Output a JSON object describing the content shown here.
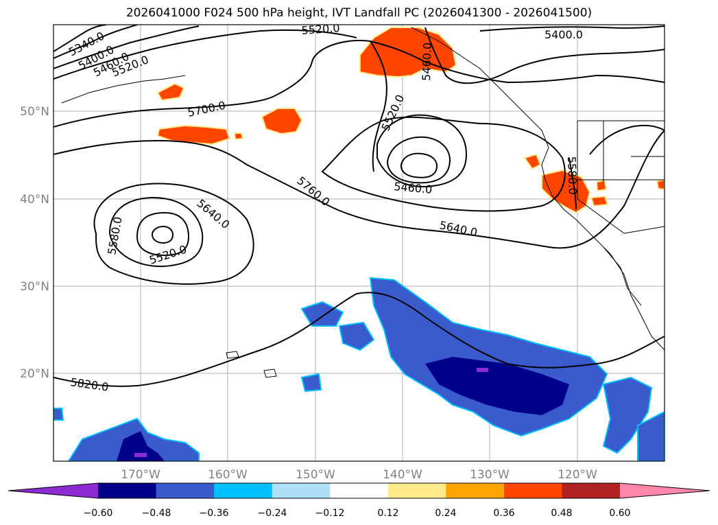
{
  "title": "2026041000 F024 500 hPa height, IVT Landfall PC (2026041300 - 2026041500)",
  "lat_labels": [
    "50°N",
    "40°N",
    "30°N",
    "20°N"
  ],
  "lon_labels": [
    "170°W",
    "160°W",
    "150°W",
    "140°W",
    "130°W",
    "120°W"
  ],
  "contour_labels": [
    "5340.0",
    "5400.0",
    "5460.0",
    "5520.0",
    "5520.0",
    "5400.0",
    "5460.0",
    "5520.0",
    "5700.0",
    "5760.0",
    "5640.0",
    "5580.0",
    "5520.0",
    "5460.0",
    "5640.0",
    "5580.0",
    "5820.0"
  ],
  "colorbar": {
    "ticks": [
      "−0.60",
      "−0.48",
      "−0.36",
      "−0.24",
      "−0.12",
      "0.12",
      "0.24",
      "0.36",
      "0.48",
      "0.60"
    ],
    "colors": [
      "#8B2BD0",
      "#00008B",
      "#3A5BCB",
      "#00BFFF",
      "#B0E0F8",
      "#FFFFFF",
      "#FFEA8C",
      "#FFA500",
      "#FF4500",
      "#B22222",
      "#FF88AA"
    ]
  },
  "shading_colors": {
    "neg_deep": "#00008B",
    "neg_mid": "#3A5BCB",
    "neg_light": "#00BFFF",
    "neg_pale": "#B0E0F8",
    "neg_extreme": "#8B2BD0",
    "pos_light": "#FFEA8C",
    "pos_mid": "#FFA500",
    "pos_strong": "#FF4500"
  }
}
